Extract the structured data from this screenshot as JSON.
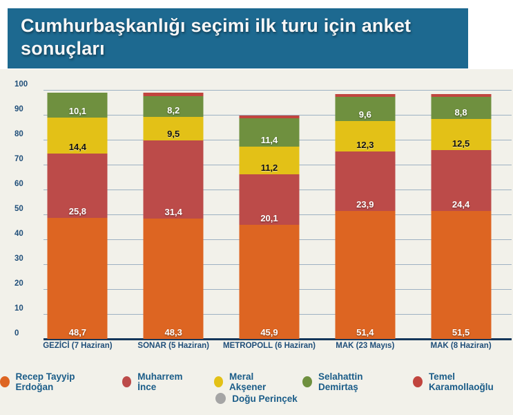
{
  "title": "Cumhurbaşkanlığı seçimi ilk turu için anket sonuçları",
  "colors": {
    "banner": "#1d6990",
    "chart_background": "#f2f1ea",
    "gridline": "#9db1c2",
    "baseline": "#14365a",
    "tick_text": "#1f4e79",
    "legend_text": "#1a5c88"
  },
  "chart_data": {
    "type": "bar",
    "stacked": true,
    "title": "Cumhurbaşkanlığı seçimi ilk turu için anket sonuçları",
    "categories": [
      "GEZİCİ (7 Haziran)",
      "SONAR (5 Haziran)",
      "METROPOLL (6 Haziran)",
      "MAK (23 Mayıs)",
      "MAK (8 Haziran)"
    ],
    "series": [
      {
        "name": "Recep Tayyip Erdoğan",
        "color": "#dd6522",
        "label_color": "#ffffff",
        "show_labels": true,
        "values": [
          48.7,
          48.3,
          45.9,
          51.4,
          51.5
        ]
      },
      {
        "name": "Muharrem İnce",
        "color": "#bc4b49",
        "label_color": "#ffffff",
        "show_labels": true,
        "values": [
          25.8,
          31.4,
          20.1,
          23.9,
          24.4
        ]
      },
      {
        "name": "Meral Akşener",
        "color": "#e3c117",
        "label_color": "#111111",
        "show_labels": true,
        "values": [
          14.4,
          9.5,
          11.2,
          12.3,
          12.5
        ]
      },
      {
        "name": "Selahattin Demirtaş",
        "color": "#6f903f",
        "label_color": "#ffffff",
        "show_labels": true,
        "values": [
          10.1,
          8.2,
          11.4,
          9.6,
          8.8
        ]
      },
      {
        "name": "Temel Karamollaoğlu",
        "color": "#c1453e",
        "label_color": "#ffffff",
        "show_labels": false,
        "values": [
          0,
          1.5,
          1.0,
          1.2,
          1.2
        ]
      },
      {
        "name": "Doğu Perinçek",
        "color": "#a5a5a5",
        "label_color": "#ffffff",
        "show_labels": false,
        "values": [
          0,
          0,
          0,
          0,
          0
        ]
      }
    ],
    "ylim": [
      0,
      100
    ],
    "yticks": [
      0,
      10,
      20,
      30,
      40,
      50,
      60,
      70,
      80,
      90,
      100
    ],
    "grid": true,
    "decimal_separator": ",",
    "legend_rows": [
      [
        0,
        1,
        2,
        3,
        4
      ],
      [
        5
      ]
    ],
    "legend_position": "bottom"
  }
}
